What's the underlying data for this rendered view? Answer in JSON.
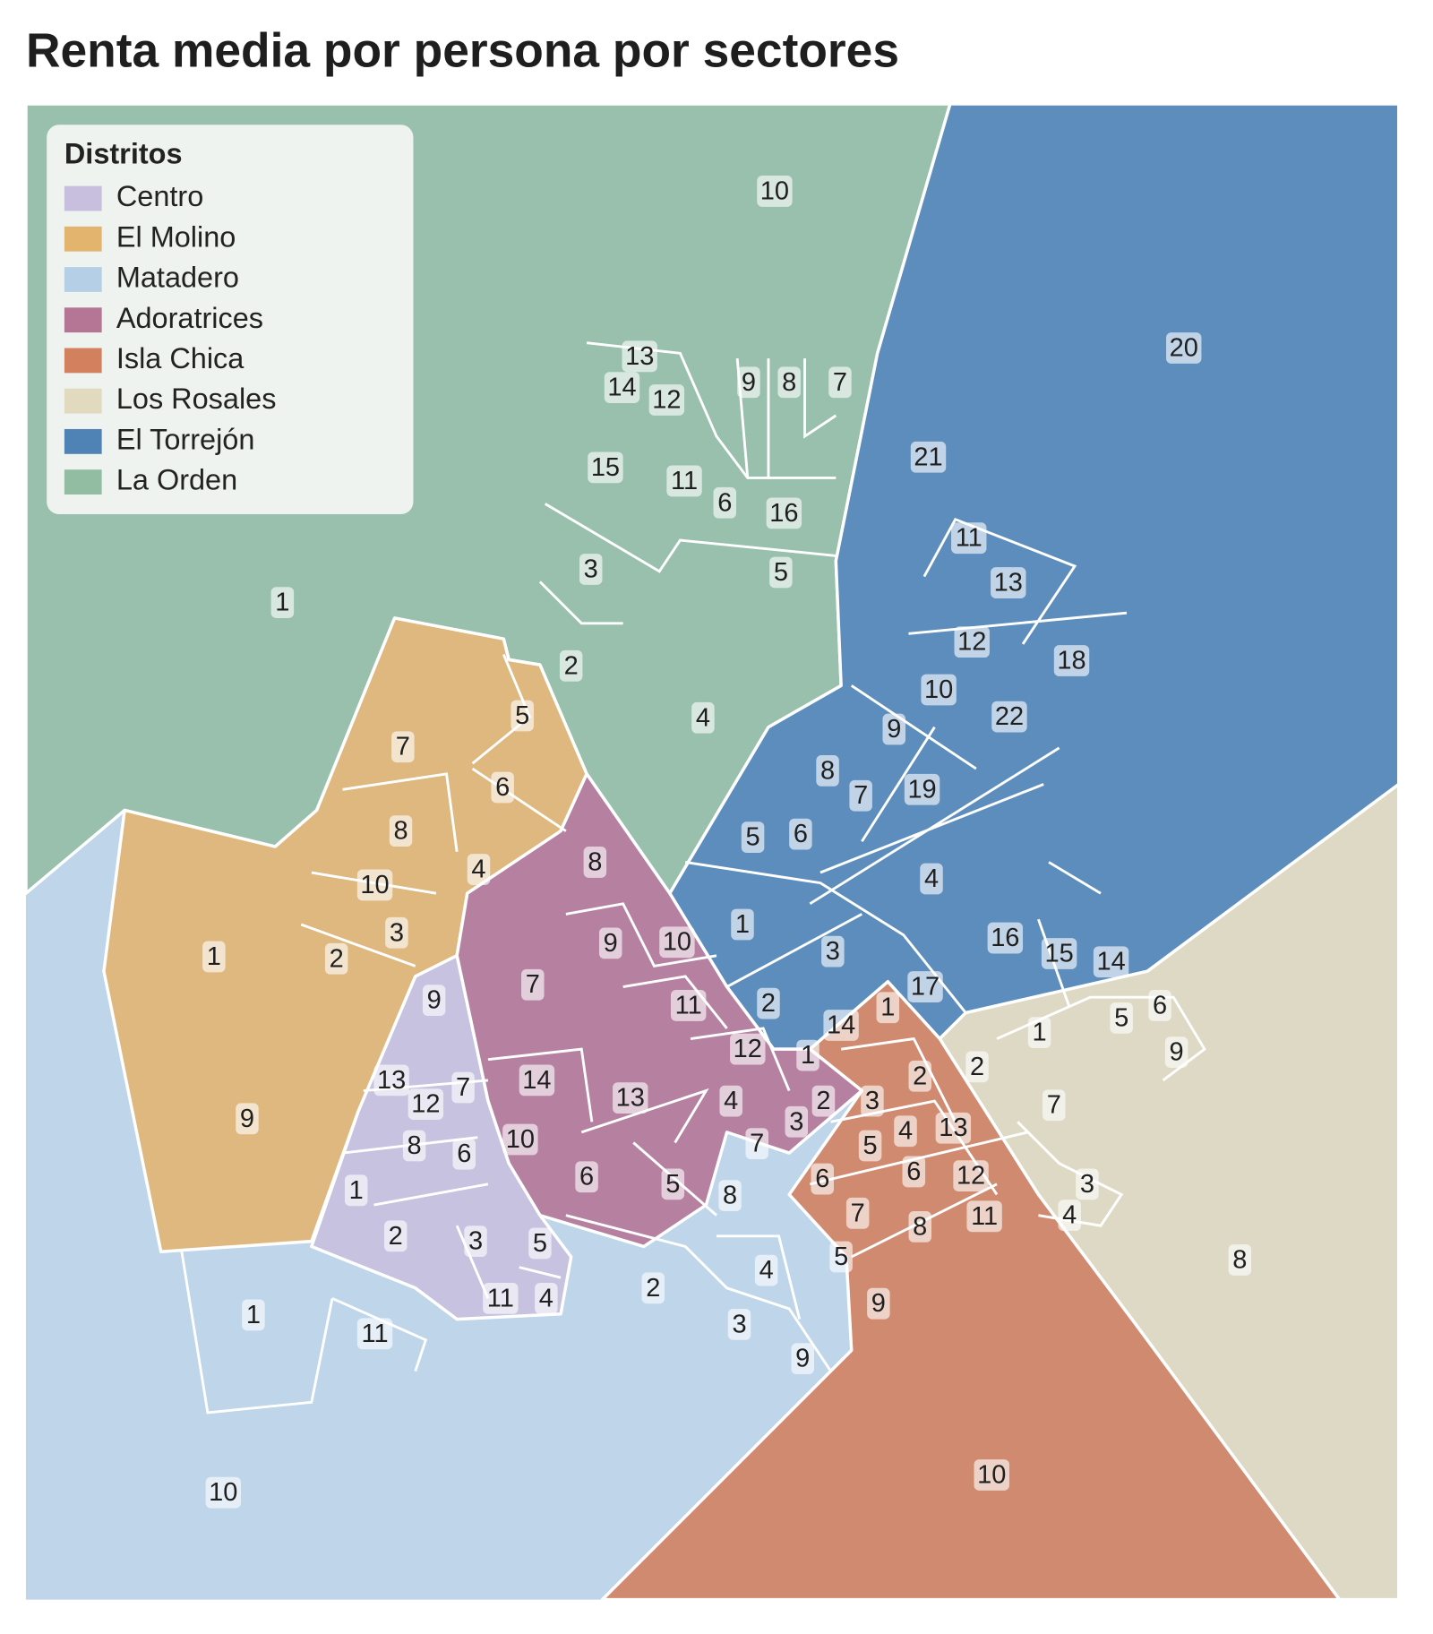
{
  "title": "Renta media por persona por sectores",
  "legend_title": "Distritos",
  "districts": [
    {
      "name": "Centro",
      "color": "#c7bfdd",
      "sectors": [
        9,
        13,
        12,
        7,
        8,
        6,
        10,
        1,
        2,
        3,
        5,
        11,
        4
      ]
    },
    {
      "name": "El Molino",
      "color": "#e3b46e",
      "sectors": [
        5,
        7,
        6,
        8,
        4,
        10,
        3,
        2,
        1,
        9
      ]
    },
    {
      "name": "Matadero",
      "color": "#b5cfe7",
      "sectors": [
        7,
        6,
        8,
        4,
        5,
        2,
        3,
        9,
        1,
        11,
        10
      ]
    },
    {
      "name": "Adoratrices",
      "color": "#b57595",
      "sectors": [
        8,
        9,
        10,
        7,
        11,
        12,
        14,
        13,
        4,
        3,
        6,
        5
      ]
    },
    {
      "name": "Isla Chica",
      "color": "#d3805f",
      "sectors": [
        14,
        1,
        1,
        2,
        2,
        3,
        4,
        13,
        5,
        6,
        12,
        7,
        8,
        11,
        9,
        10
      ]
    },
    {
      "name": "Los Rosales",
      "color": "#e1dabf",
      "sectors": [
        1,
        5,
        6,
        9,
        2,
        7,
        3,
        4,
        8
      ]
    },
    {
      "name": "El Torrejón",
      "color": "#4f83b6",
      "sectors": [
        20,
        21,
        11,
        13,
        12,
        18,
        10,
        22,
        9,
        8,
        7,
        19,
        5,
        6,
        4,
        1,
        3,
        16,
        15,
        14,
        17,
        2
      ]
    },
    {
      "name": "La Orden",
      "color": "#93bda3",
      "sectors": [
        10,
        13,
        14,
        12,
        9,
        8,
        7,
        15,
        11,
        6,
        16,
        3,
        5,
        2,
        4,
        1
      ]
    }
  ]
}
